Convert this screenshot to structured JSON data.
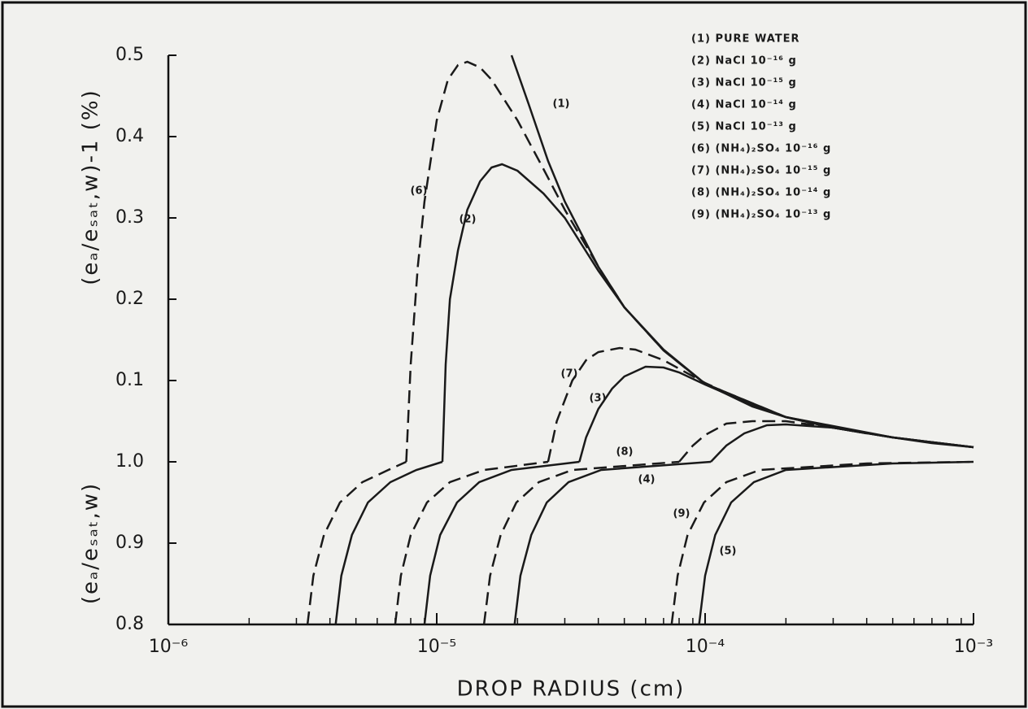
{
  "chart_data": [
    {
      "type": "line",
      "xscale": "log",
      "xlim": [
        1e-06,
        0.001
      ],
      "ylim": [
        0,
        0.5
      ],
      "yticks": [
        0.1,
        0.2,
        0.3,
        0.4,
        0.5
      ],
      "ylabel": "(eₐ/eₛₐₜ,w)-1  (%)",
      "color": "#1a1a1a",
      "legend": [
        "(1) PURE WATER",
        "(2) NaCl 10⁻¹⁶ g",
        "(3) NaCl 10⁻¹⁵ g",
        "(4) NaCl 10⁻¹⁴ g",
        "(5) NaCl 10⁻¹³ g",
        "(6) (NH₄)₂SO₄ 10⁻¹⁶ g",
        "(7) (NH₄)₂SO₄ 10⁻¹⁵ g",
        "(8) (NH₄)₂SO₄ 10⁻¹⁴ g",
        "(9) (NH₄)₂SO₄ 10⁻¹³ g"
      ],
      "series": [
        {
          "name": "(1)",
          "dashed": false,
          "x": [
            1.9e-05,
            2.2e-05,
            2.6e-05,
            3e-05,
            4e-05,
            5e-05,
            7e-05,
            0.0001,
            0.00015,
            0.0002,
            0.0003,
            0.0005,
            0.0007,
            0.001
          ],
          "values": [
            0.5,
            0.44,
            0.37,
            0.32,
            0.24,
            0.19,
            0.137,
            0.096,
            0.068,
            0.055,
            0.042,
            0.03,
            0.023,
            0.018
          ]
        },
        {
          "name": "(6)",
          "dashed": true,
          "x": [
            7.7e-06,
            8e-06,
            8.5e-06,
            9e-06,
            1e-05,
            1.1e-05,
            1.2e-05,
            1.3e-05,
            1.45e-05,
            1.6e-05,
            2e-05,
            2.5e-05,
            3e-05,
            4e-05,
            5e-05,
            7e-05,
            0.0001,
            0.0002,
            0.0004
          ],
          "values": [
            0,
            0.12,
            0.24,
            0.32,
            0.42,
            0.47,
            0.488,
            0.492,
            0.485,
            0.47,
            0.42,
            0.36,
            0.31,
            0.24,
            0.19,
            0.137,
            0.096,
            0.055,
            0.035
          ]
        },
        {
          "name": "(2)",
          "dashed": false,
          "x": [
            1.05e-05,
            1.08e-05,
            1.12e-05,
            1.2e-05,
            1.3e-05,
            1.45e-05,
            1.6e-05,
            1.75e-05,
            2e-05,
            2.5e-05,
            3e-05,
            4e-05,
            5e-05,
            7e-05,
            0.0001,
            0.0002,
            0.0005,
            0.001
          ],
          "values": [
            0,
            0.12,
            0.2,
            0.26,
            0.31,
            0.345,
            0.362,
            0.366,
            0.358,
            0.33,
            0.3,
            0.235,
            0.19,
            0.138,
            0.096,
            0.055,
            0.03,
            0.018
          ]
        },
        {
          "name": "(7)",
          "dashed": true,
          "x": [
            2.6e-05,
            2.8e-05,
            3.2e-05,
            3.6e-05,
            4e-05,
            4.8e-05,
            5.5e-05,
            7e-05,
            0.0001,
            0.00015,
            0.0002,
            0.0003,
            0.0004
          ],
          "values": [
            0,
            0.05,
            0.1,
            0.125,
            0.135,
            0.14,
            0.138,
            0.125,
            0.097,
            0.07,
            0.055,
            0.042,
            0.035
          ]
        },
        {
          "name": "(3)",
          "dashed": false,
          "x": [
            3.4e-05,
            3.6e-05,
            4e-05,
            4.5e-05,
            5e-05,
            6e-05,
            7e-05,
            8e-05,
            0.0001,
            0.00015,
            0.0002,
            0.0003,
            0.0005,
            0.001
          ],
          "values": [
            0,
            0.03,
            0.065,
            0.09,
            0.105,
            0.117,
            0.116,
            0.11,
            0.095,
            0.07,
            0.055,
            0.042,
            0.03,
            0.018
          ]
        },
        {
          "name": "(8)",
          "dashed": true,
          "x": [
            8e-05,
            9e-05,
            0.0001,
            0.00012,
            0.00015,
            0.0002,
            0.0003,
            0.0004
          ],
          "values": [
            0,
            0.02,
            0.033,
            0.047,
            0.05,
            0.05,
            0.042,
            0.035
          ]
        },
        {
          "dashed": false,
          "x": [
            0.000105,
            0.00012,
            0.00014,
            0.00017,
            0.0002,
            0.0003,
            0.0005,
            0.001
          ],
          "values": [
            0,
            0.02,
            0.035,
            0.045,
            0.046,
            0.042,
            0.03,
            0.018
          ]
        }
      ]
    },
    {
      "type": "line",
      "xscale": "log",
      "xlim": [
        1e-06,
        0.001
      ],
      "ylim": [
        0.8,
        1.0
      ],
      "yticks": [
        0.8,
        0.9,
        {
          "value": 1.0,
          "label": "1.0"
        }
      ],
      "ylabel": "(eₐ/eₛₐₜ,w)",
      "xlabel": "DROP RADIUS (cm)",
      "color": "#1a1a1a",
      "xticks": [
        {
          "value": 1e-06,
          "label": "10⁻⁶"
        },
        {
          "value": 1e-05,
          "label": "10⁻⁵"
        },
        {
          "value": 0.0001,
          "label": "10⁻⁴"
        },
        {
          "value": 0.001,
          "label": "10⁻³"
        }
      ],
      "xminorticks": [
        2e-06,
        3e-06,
        4e-06,
        5e-06,
        6e-06,
        7e-06,
        8e-06,
        9e-06,
        2e-05,
        3e-05,
        4e-05,
        5e-05,
        6e-05,
        7e-05,
        8e-05,
        9e-05,
        0.0002,
        0.0003,
        0.0004,
        0.0005,
        0.0006,
        0.0007,
        0.0008,
        0.0009
      ],
      "series": [
        {
          "dashed": true,
          "x": [
            3.3e-06,
            3.47e-06,
            3.8e-06,
            4.36e-06,
            5.28e-06,
            6.6e-06,
            7.7e-06
          ],
          "values": [
            0.8,
            0.86,
            0.91,
            0.95,
            0.975,
            0.99,
            1.0
          ]
        },
        {
          "dashed": false,
          "x": [
            4.2e-06,
            4.41e-06,
            4.83e-06,
            5.54e-06,
            6.72e-06,
            8.4e-06,
            1.05e-05
          ],
          "values": [
            0.8,
            0.86,
            0.91,
            0.95,
            0.975,
            0.99,
            1.0
          ]
        },
        {
          "dashed": true,
          "x": [
            7e-06,
            7.35e-06,
            8e-06,
            9.2e-06,
            1.12e-05,
            1.5e-05,
            2.6e-05
          ],
          "values": [
            0.8,
            0.86,
            0.91,
            0.95,
            0.975,
            0.99,
            1.0
          ]
        },
        {
          "dashed": false,
          "x": [
            9e-06,
            9.45e-06,
            1.03e-05,
            1.19e-05,
            1.44e-05,
            1.9e-05,
            3.4e-05
          ],
          "values": [
            0.8,
            0.86,
            0.91,
            0.95,
            0.975,
            0.99,
            1.0
          ]
        },
        {
          "dashed": true,
          "x": [
            1.5e-05,
            1.58e-05,
            1.73e-05,
            1.98e-05,
            2.4e-05,
            3.2e-05,
            8e-05
          ],
          "values": [
            0.8,
            0.86,
            0.91,
            0.95,
            0.975,
            0.99,
            1.0
          ]
        },
        {
          "name": "(4)",
          "dashed": false,
          "x": [
            1.95e-05,
            2.05e-05,
            2.25e-05,
            2.57e-05,
            3.1e-05,
            4.1e-05,
            0.000105
          ],
          "values": [
            0.8,
            0.86,
            0.91,
            0.95,
            0.975,
            0.99,
            1.0
          ]
        },
        {
          "name": "(9)",
          "dashed": true,
          "x": [
            7.5e-05,
            7.9e-05,
            8.6e-05,
            9.9e-05,
            0.00012,
            0.00016,
            0.0004,
            0.001
          ],
          "values": [
            0.8,
            0.86,
            0.91,
            0.95,
            0.975,
            0.99,
            0.998,
            1.0
          ]
        },
        {
          "name": "(5)",
          "dashed": false,
          "x": [
            9.5e-05,
            0.0001,
            0.000109,
            0.000125,
            0.000152,
            0.0002,
            0.0005,
            0.001
          ],
          "values": [
            0.8,
            0.86,
            0.91,
            0.95,
            0.975,
            0.99,
            0.998,
            1.0
          ]
        }
      ]
    }
  ]
}
